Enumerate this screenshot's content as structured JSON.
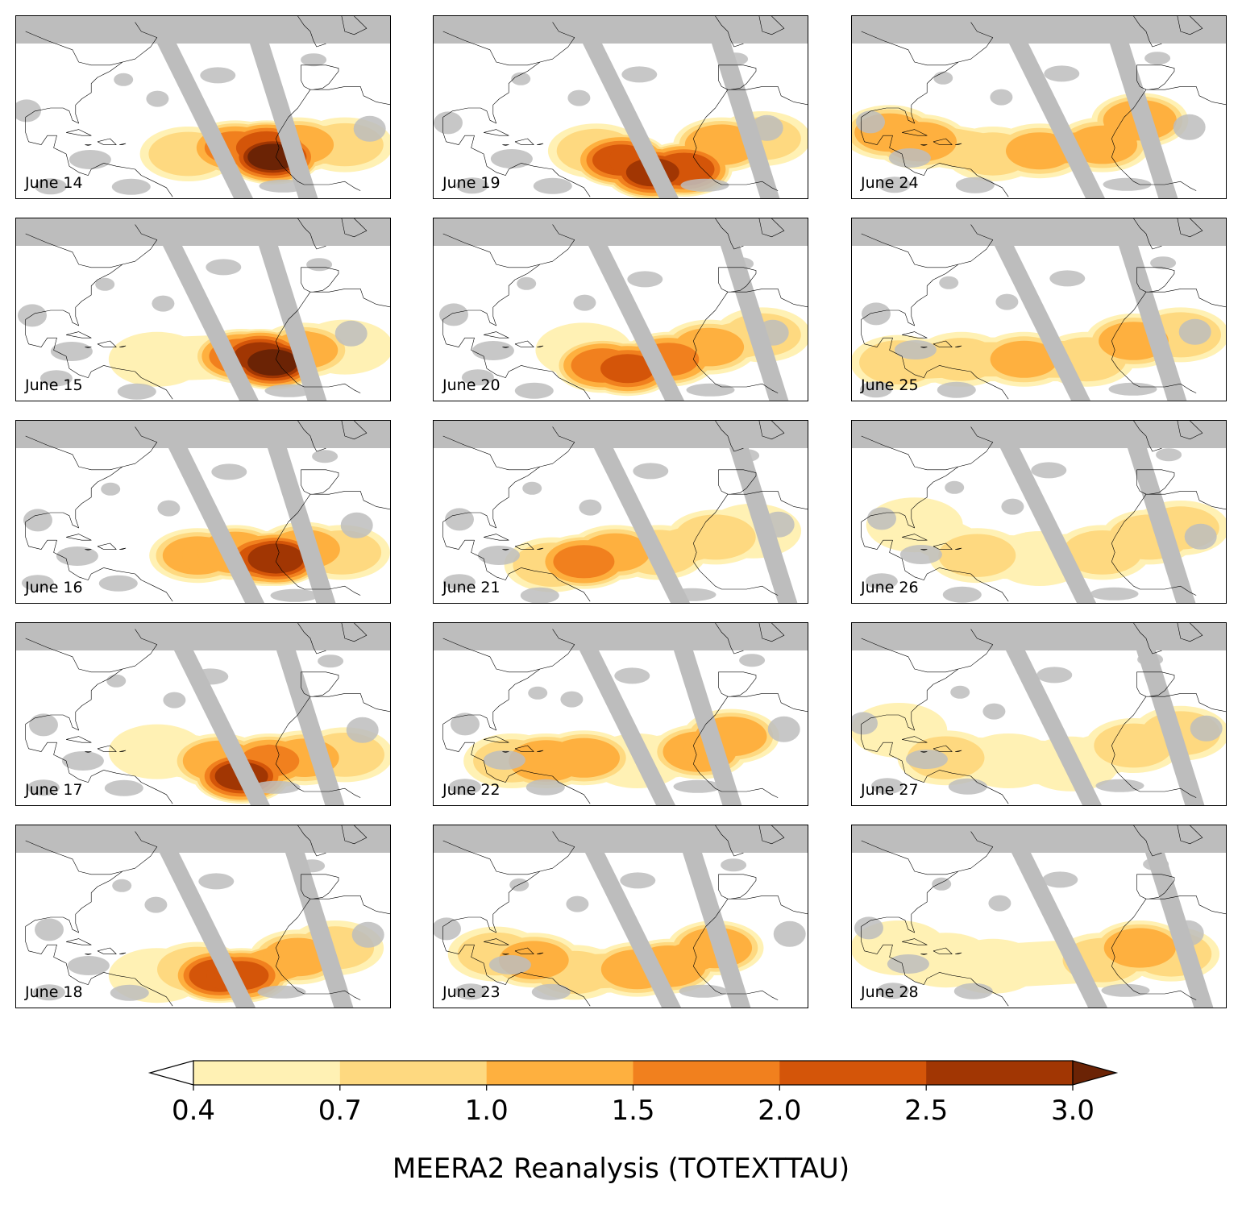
{
  "chart_data": {
    "type": "heatmap",
    "layout": "small-multiples",
    "panels": [
      {
        "label": "June 14",
        "plume": [
          [
            -45,
            15,
            0.8
          ],
          [
            -30,
            17,
            1.6
          ],
          [
            -20,
            17,
            2.4
          ],
          [
            -18,
            14,
            3.0
          ],
          [
            -10,
            18,
            1.2
          ],
          [
            5,
            18,
            0.7
          ]
        ]
      },
      {
        "label": "June 15",
        "plume": [
          [
            -55,
            14,
            0.6
          ],
          [
            -28,
            15,
            1.8
          ],
          [
            -22,
            15,
            2.6
          ],
          [
            -18,
            13,
            3.0
          ],
          [
            -8,
            17,
            1.0
          ],
          [
            5,
            18,
            0.6
          ]
        ]
      },
      {
        "label": "June 16",
        "plume": [
          [
            -42,
            16,
            1.1
          ],
          [
            -30,
            17,
            1.4
          ],
          [
            -20,
            15,
            2.2
          ],
          [
            -17,
            15,
            2.8
          ],
          [
            -8,
            18,
            1.2
          ],
          [
            4,
            17,
            0.8
          ]
        ]
      },
      {
        "label": "June 17",
        "plume": [
          [
            -55,
            18,
            0.6
          ],
          [
            -35,
            15,
            1.3
          ],
          [
            -28,
            10,
            2.6
          ],
          [
            -19,
            15,
            1.5
          ],
          [
            -8,
            16,
            1.1
          ],
          [
            5,
            17,
            0.8
          ]
        ]
      },
      {
        "label": "June 18",
        "plume": [
          [
            -55,
            11,
            0.6
          ],
          [
            -42,
            13,
            0.9
          ],
          [
            -35,
            11,
            2.4
          ],
          [
            -28,
            11,
            2.0
          ],
          [
            -10,
            17,
            1.1
          ],
          [
            2,
            20,
            0.7
          ]
        ]
      },
      {
        "label": "June 19",
        "plume": [
          [
            -48,
            16,
            0.8
          ],
          [
            -40,
            13,
            2.2
          ],
          [
            -30,
            9,
            2.6
          ],
          [
            -20,
            10,
            2.4
          ],
          [
            -8,
            18,
            1.3
          ],
          [
            5,
            20,
            0.7
          ]
        ]
      },
      {
        "label": "June 20",
        "plume": [
          [
            -52,
            17,
            0.6
          ],
          [
            -46,
            12,
            1.7
          ],
          [
            -38,
            11,
            2.0
          ],
          [
            -25,
            14,
            1.6
          ],
          [
            -12,
            18,
            1.1
          ],
          [
            5,
            22,
            0.7
          ]
        ]
      },
      {
        "label": "June 21",
        "plume": [
          [
            -62,
            13,
            0.8
          ],
          [
            -52,
            14,
            1.6
          ],
          [
            -42,
            17,
            1.1
          ],
          [
            -28,
            17,
            0.9
          ],
          [
            -10,
            22,
            0.9
          ],
          [
            2,
            24,
            0.6
          ]
        ]
      },
      {
        "label": "June 22",
        "plume": [
          [
            -75,
            15,
            0.7
          ],
          [
            -64,
            15,
            1.4
          ],
          [
            -52,
            16,
            1.2
          ],
          [
            -35,
            15,
            0.6
          ],
          [
            -15,
            18,
            1.3
          ],
          [
            -5,
            23,
            1.2
          ]
        ]
      },
      {
        "label": "June 23",
        "plume": [
          [
            -80,
            18,
            0.7
          ],
          [
            -68,
            16,
            1.1
          ],
          [
            -55,
            12,
            0.7
          ],
          [
            -35,
            13,
            1.2
          ],
          [
            -25,
            14,
            1.4
          ],
          [
            -10,
            20,
            1.3
          ]
        ]
      },
      {
        "label": "June 24",
        "plume": [
          [
            -88,
            22,
            1.1
          ],
          [
            -78,
            19,
            1.2
          ],
          [
            -55,
            15,
            0.7
          ],
          [
            -40,
            16,
            1.0
          ],
          [
            -20,
            18,
            1.1
          ],
          [
            -8,
            26,
            1.3
          ]
        ]
      },
      {
        "label": "June 25",
        "plume": [
          [
            -85,
            13,
            0.8
          ],
          [
            -65,
            14,
            0.7
          ],
          [
            -45,
            14,
            1.0
          ],
          [
            -25,
            14,
            0.8
          ],
          [
            -10,
            20,
            1.1
          ],
          [
            5,
            22,
            0.9
          ]
        ]
      },
      {
        "label": "June 26",
        "plume": [
          [
            -80,
            26,
            0.6
          ],
          [
            -60,
            16,
            0.7
          ],
          [
            -40,
            15,
            0.6
          ],
          [
            -20,
            17,
            0.8
          ],
          [
            -5,
            22,
            0.9
          ],
          [
            5,
            25,
            0.7
          ]
        ]
      },
      {
        "label": "June 27",
        "plume": [
          [
            -85,
            25,
            0.6
          ],
          [
            -70,
            16,
            0.7
          ],
          [
            -50,
            15,
            0.6
          ],
          [
            -30,
            14,
            0.6
          ],
          [
            -10,
            20,
            0.8
          ],
          [
            5,
            24,
            0.8
          ]
        ]
      },
      {
        "label": "June 28",
        "plume": [
          [
            -85,
            20,
            0.5
          ],
          [
            -70,
            16,
            0.6
          ],
          [
            -55,
            14,
            0.5
          ],
          [
            -20,
            16,
            0.8
          ],
          [
            -8,
            20,
            1.2
          ],
          [
            2,
            18,
            0.9
          ]
        ]
      }
    ],
    "colorbar": {
      "levels": [
        0.4,
        0.7,
        1.0,
        1.5,
        2.0,
        2.5,
        3.0
      ],
      "tick_labels": [
        "0.4",
        "0.7",
        "1.0",
        "1.5",
        "2.0",
        "2.5",
        "3.0"
      ],
      "colors": [
        "#fff1b4",
        "#fed980",
        "#feb03f",
        "#f1801e",
        "#d45509",
        "#a13603",
        "#6b2305"
      ],
      "extend": "both",
      "orientation": "horizontal",
      "label": "MEERA2 Reanalysis (TOTEXTTAU)"
    },
    "missing_color": "#bdbdbd",
    "coastline_color": "#000000",
    "lon_range": [
      -100,
      20
    ],
    "lat_range": [
      0,
      60
    ]
  }
}
